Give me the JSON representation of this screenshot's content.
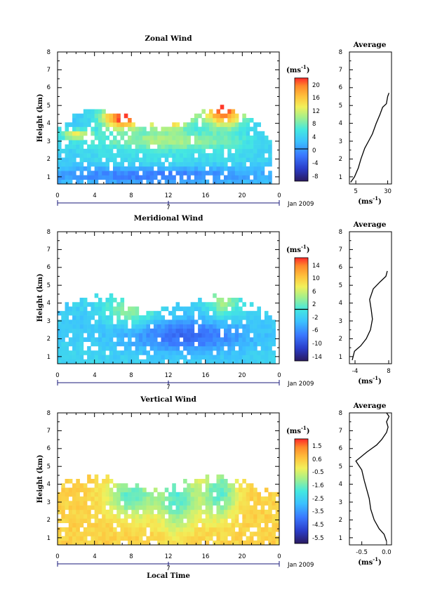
{
  "chart_data": [
    {
      "type": "heatmap",
      "title": "Zonal Wind",
      "ylabel": "Height (km)",
      "xlabel": "",
      "x_ticks": [
        "0",
        "4",
        "8",
        "12",
        "16",
        "20",
        "0"
      ],
      "y_ticks": [
        "1",
        "2",
        "3",
        "4",
        "5",
        "6",
        "7",
        "8"
      ],
      "xlim": [
        0,
        24
      ],
      "ylim": [
        0.6,
        8.0
      ],
      "date_label": "Jan 2009",
      "day_label": "7",
      "colorbar": {
        "unit_prefix": "(ms",
        "unit_exp": "-1",
        "unit_suffix": ")",
        "ticks": [
          "20",
          "16",
          "12",
          "8",
          "4",
          "0",
          "-4",
          "-8"
        ],
        "range": [
          -10,
          22
        ],
        "zero_line_value": 0
      },
      "field": {
        "blobs": [
          {
            "x": 2,
            "y": 3.4,
            "sx": 1.2,
            "sy": 0.2,
            "v": 12
          },
          {
            "x": 7,
            "y": 4.3,
            "sx": 1.6,
            "sy": 0.45,
            "v": 22
          },
          {
            "x": 12,
            "y": 4.4,
            "sx": 1.6,
            "sy": 0.5,
            "v": 22
          },
          {
            "x": 18,
            "y": 4.8,
            "sx": 1.6,
            "sy": 0.7,
            "v": 22
          },
          {
            "x": 12,
            "y": 3.0,
            "sx": 6,
            "sy": 0.35,
            "v": 10
          },
          {
            "x": 12,
            "y": 2.0,
            "sx": 8,
            "sy": 0.4,
            "v": 5
          },
          {
            "x": 10,
            "y": 1.1,
            "sx": 9,
            "sy": 0.35,
            "v": -2
          }
        ],
        "base": 3,
        "mask": {
          "x0": 0,
          "x1": 23,
          "ytop_base": 3.8,
          "ytop_amp": 1.2
        }
      },
      "profile": {
        "title": "Average",
        "xlabel_prefix": "(ms",
        "xlabel_exp": "-1",
        "xlabel_suffix": ")",
        "x_ticks": [
          "5",
          "30"
        ],
        "x_tick_values": [
          5,
          30
        ],
        "xlim": [
          0,
          33
        ],
        "points": [
          [
            1,
            0.7
          ],
          [
            4,
            1.0
          ],
          [
            7,
            1.5
          ],
          [
            9,
            2.0
          ],
          [
            12,
            2.6
          ],
          [
            15,
            3.0
          ],
          [
            18,
            3.4
          ],
          [
            21,
            4.0
          ],
          [
            24,
            4.5
          ],
          [
            26,
            4.9
          ],
          [
            29,
            5.1
          ],
          [
            30,
            5.5
          ],
          [
            31,
            5.7
          ]
        ]
      }
    },
    {
      "type": "heatmap",
      "title": "Meridional Wind",
      "ylabel": "Height (km)",
      "xlabel": "",
      "x_ticks": [
        "0",
        "4",
        "8",
        "12",
        "16",
        "20",
        "0"
      ],
      "y_ticks": [
        "1",
        "2",
        "3",
        "4",
        "5",
        "6",
        "7",
        "8"
      ],
      "xlim": [
        0,
        24
      ],
      "ylim": [
        0.6,
        8.0
      ],
      "date_label": "Jan 2009",
      "day_label": "7",
      "colorbar": {
        "unit_prefix": "(ms",
        "unit_exp": "-1",
        "unit_suffix": ")",
        "ticks": [
          "14",
          "10",
          "6",
          "2",
          "-2",
          "-6",
          "-10",
          "-14"
        ],
        "range": [
          -16,
          16
        ],
        "zero_line_value": 0
      },
      "field": {
        "blobs": [
          {
            "x": 8,
            "y": 3.6,
            "sx": 2,
            "sy": 0.6,
            "v": 4
          },
          {
            "x": 18,
            "y": 4.2,
            "sx": 1.2,
            "sy": 0.8,
            "v": 4
          },
          {
            "x": 14,
            "y": 2.2,
            "sx": 5,
            "sy": 0.7,
            "v": -9
          },
          {
            "x": 2,
            "y": 3.0,
            "sx": 2.5,
            "sy": 0.6,
            "v": -3
          }
        ],
        "base": -2,
        "mask": {
          "x0": 0,
          "x1": 23.5,
          "ytop_base": 3.5,
          "ytop_amp": 1.0
        }
      },
      "profile": {
        "title": "Average",
        "xlabel_prefix": "(ms",
        "xlabel_exp": "-1",
        "xlabel_suffix": ")",
        "x_ticks": [
          "-4",
          "8"
        ],
        "x_tick_values": [
          -4,
          8
        ],
        "xlim": [
          -6,
          9
        ],
        "points": [
          [
            -5,
            0.8
          ],
          [
            -4.2,
            1.3
          ],
          [
            -2,
            1.6
          ],
          [
            0,
            2.0
          ],
          [
            1.5,
            2.5
          ],
          [
            2.2,
            3.1
          ],
          [
            1.8,
            3.6
          ],
          [
            1.2,
            4.2
          ],
          [
            2.5,
            4.8
          ],
          [
            5,
            5.2
          ],
          [
            7,
            5.5
          ],
          [
            7.5,
            5.8
          ]
        ]
      }
    },
    {
      "type": "heatmap",
      "title": "Vertical Wind",
      "ylabel": "Height (km)",
      "xlabel": "Local Time",
      "x_ticks": [
        "0",
        "4",
        "8",
        "12",
        "16",
        "20",
        "0"
      ],
      "y_ticks": [
        "1",
        "2",
        "3",
        "4",
        "5",
        "6",
        "7",
        "8"
      ],
      "xlim": [
        0,
        24
      ],
      "ylim": [
        0.6,
        8.0
      ],
      "date_label": "Jan 2009",
      "day_label": "7",
      "colorbar": {
        "unit_prefix": "(ms",
        "unit_exp": "-1",
        "unit_suffix": ")",
        "ticks": [
          "1.5",
          "0.6",
          "-0.5",
          "-1.6",
          "-2.5",
          "-3.5",
          "-4.5",
          "-5.5"
        ],
        "range": [
          -6,
          2
        ],
        "zero_line_value": null
      },
      "field": {
        "blobs": [
          {
            "x": 8,
            "y": 3.3,
            "sx": 1.8,
            "sy": 0.8,
            "v": -1.8
          },
          {
            "x": 13,
            "y": 3.2,
            "sx": 1.5,
            "sy": 1.2,
            "v": -1.8
          },
          {
            "x": 17.5,
            "y": 3.5,
            "sx": 1.3,
            "sy": 1.0,
            "v": -1.8
          }
        ],
        "base": 0.3,
        "mask": {
          "x0": 0,
          "x1": 24,
          "ytop_base": 3.7,
          "ytop_amp": 0.8
        }
      },
      "profile": {
        "title": "Average",
        "xlabel_prefix": "(ms",
        "xlabel_exp": "-1",
        "xlabel_suffix": ")",
        "x_ticks": [
          "-0.5",
          "0.0"
        ],
        "x_tick_values": [
          -0.5,
          0.0
        ],
        "xlim": [
          -0.75,
          0.1
        ],
        "points": [
          [
            0.0,
            0.8
          ],
          [
            -0.05,
            1.2
          ],
          [
            -0.15,
            1.5
          ],
          [
            -0.25,
            2.0
          ],
          [
            -0.32,
            2.6
          ],
          [
            -0.35,
            3.2
          ],
          [
            -0.4,
            3.7
          ],
          [
            -0.45,
            4.2
          ],
          [
            -0.5,
            4.8
          ],
          [
            -0.62,
            5.3
          ],
          [
            -0.4,
            5.8
          ],
          [
            -0.2,
            6.2
          ],
          [
            -0.1,
            6.5
          ],
          [
            0.0,
            6.9
          ],
          [
            0.03,
            7.2
          ],
          [
            0.0,
            7.5
          ],
          [
            0.05,
            7.8
          ],
          [
            0.0,
            8.0
          ]
        ]
      }
    }
  ]
}
